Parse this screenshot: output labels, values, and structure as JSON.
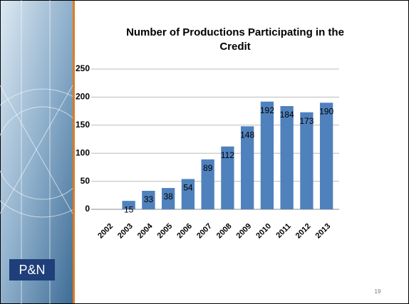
{
  "chart_data": {
    "type": "bar",
    "title": "Number of Productions Participating in the Credit",
    "categories": [
      "2002",
      "2003",
      "2004",
      "2005",
      "2006",
      "2007",
      "2008",
      "2009",
      "2010",
      "2011",
      "2012",
      "2013"
    ],
    "values": [
      null,
      15,
      33,
      38,
      54,
      89,
      112,
      148,
      192,
      184,
      173,
      190
    ],
    "color": "#4f81bd",
    "ylim": [
      0,
      250
    ],
    "yticks": [
      0,
      50,
      100,
      150,
      200,
      250
    ],
    "grid": true
  },
  "slide": {
    "logo": "P&N",
    "page_number": "19"
  }
}
